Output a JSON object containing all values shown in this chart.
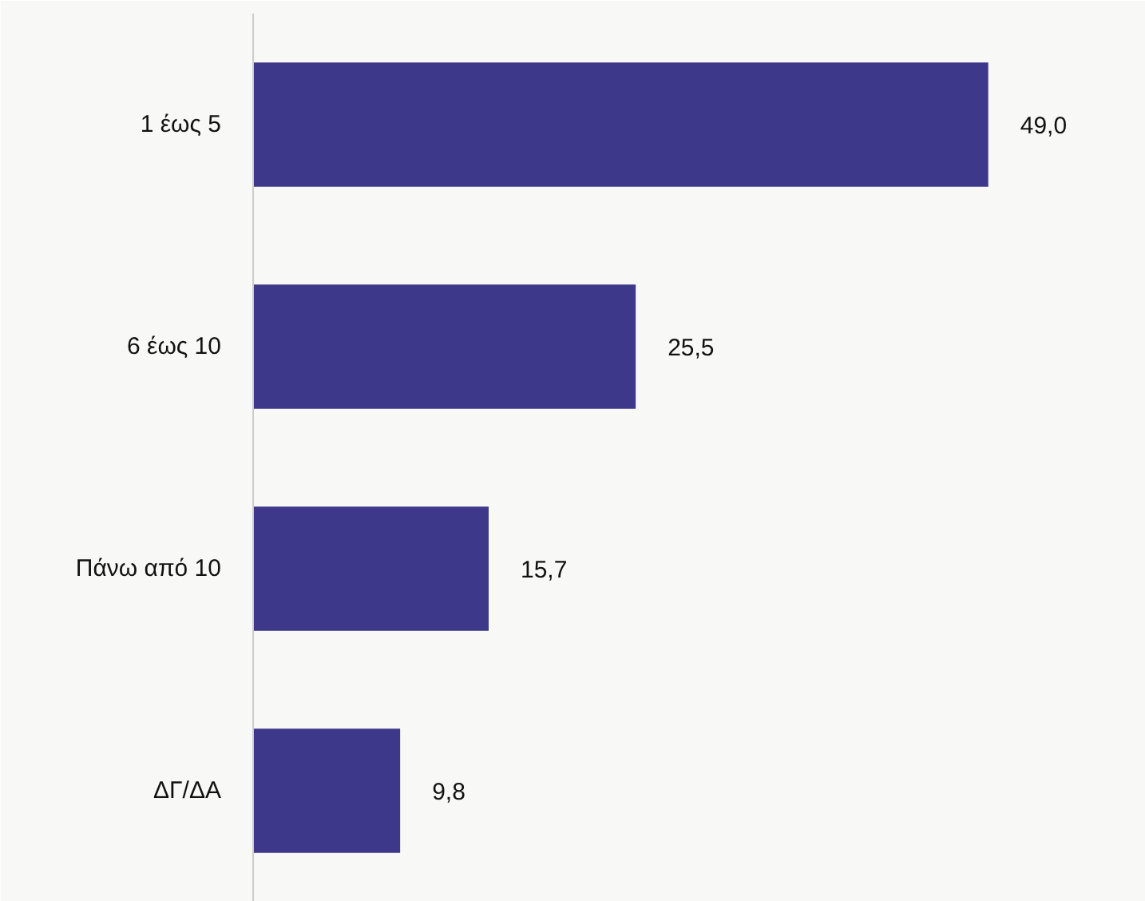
{
  "chart_data": {
    "type": "bar",
    "orientation": "horizontal",
    "categories": [
      "1 έως 5",
      "6 έως 10",
      "Πάνω από 10",
      "ΔΓ/ΔΑ"
    ],
    "values": [
      49.0,
      25.5,
      15.7,
      9.8
    ],
    "value_labels": [
      "49,0",
      "25,5",
      "15,7",
      "9,8"
    ],
    "color": "#3d3889",
    "xlim": [
      0,
      59.5
    ],
    "tick_labels": "y",
    "grid": false
  }
}
